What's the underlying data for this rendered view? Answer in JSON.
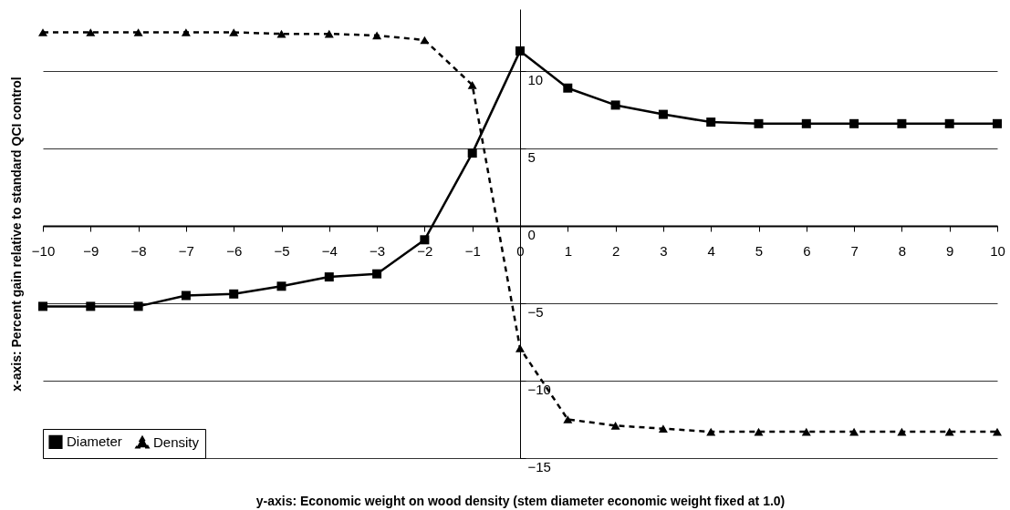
{
  "chart_data": {
    "type": "line",
    "xlabel": "y-axis: Economic weight on wood density (stem diameter economic weight fixed at 1.0)",
    "ylabel": "x-axis: Percent gain relative to standard QCI control",
    "x": [
      -10,
      -9,
      -8,
      -7,
      -6,
      -5,
      -4,
      -3,
      -2,
      -1,
      0,
      1,
      2,
      3,
      4,
      5,
      6,
      7,
      8,
      9,
      10
    ],
    "series": [
      {
        "name": "Diameter",
        "color": "#000000",
        "marker": "square",
        "line_style": "solid",
        "values": [
          -5.2,
          -5.2,
          -5.2,
          -4.5,
          -4.4,
          -3.9,
          -3.3,
          -3.1,
          -0.9,
          4.7,
          11.3,
          8.9,
          7.8,
          7.2,
          6.7,
          6.6,
          6.6,
          6.6,
          6.6,
          6.6,
          6.6
        ]
      },
      {
        "name": "Density",
        "color": "#000000",
        "marker": "triangle",
        "line_style": "dashed",
        "values": [
          12.5,
          12.5,
          12.5,
          12.5,
          12.5,
          12.4,
          12.4,
          12.3,
          12.0,
          9.1,
          -7.9,
          -12.5,
          -12.9,
          -13.1,
          -13.3,
          -13.3,
          -13.3,
          -13.3,
          -13.3,
          -13.3,
          -13.3
        ]
      }
    ],
    "xlim": [
      -10,
      10
    ],
    "xticks": [
      -10,
      -9,
      -8,
      -7,
      -6,
      -5,
      -4,
      -3,
      -2,
      -1,
      0,
      1,
      2,
      3,
      4,
      5,
      6,
      7,
      8,
      9,
      10
    ],
    "ylim": [
      -15,
      14
    ],
    "yticks": [
      -15,
      -10,
      -5,
      0,
      5,
      10
    ],
    "grid": "y",
    "legend": "bottom left"
  }
}
